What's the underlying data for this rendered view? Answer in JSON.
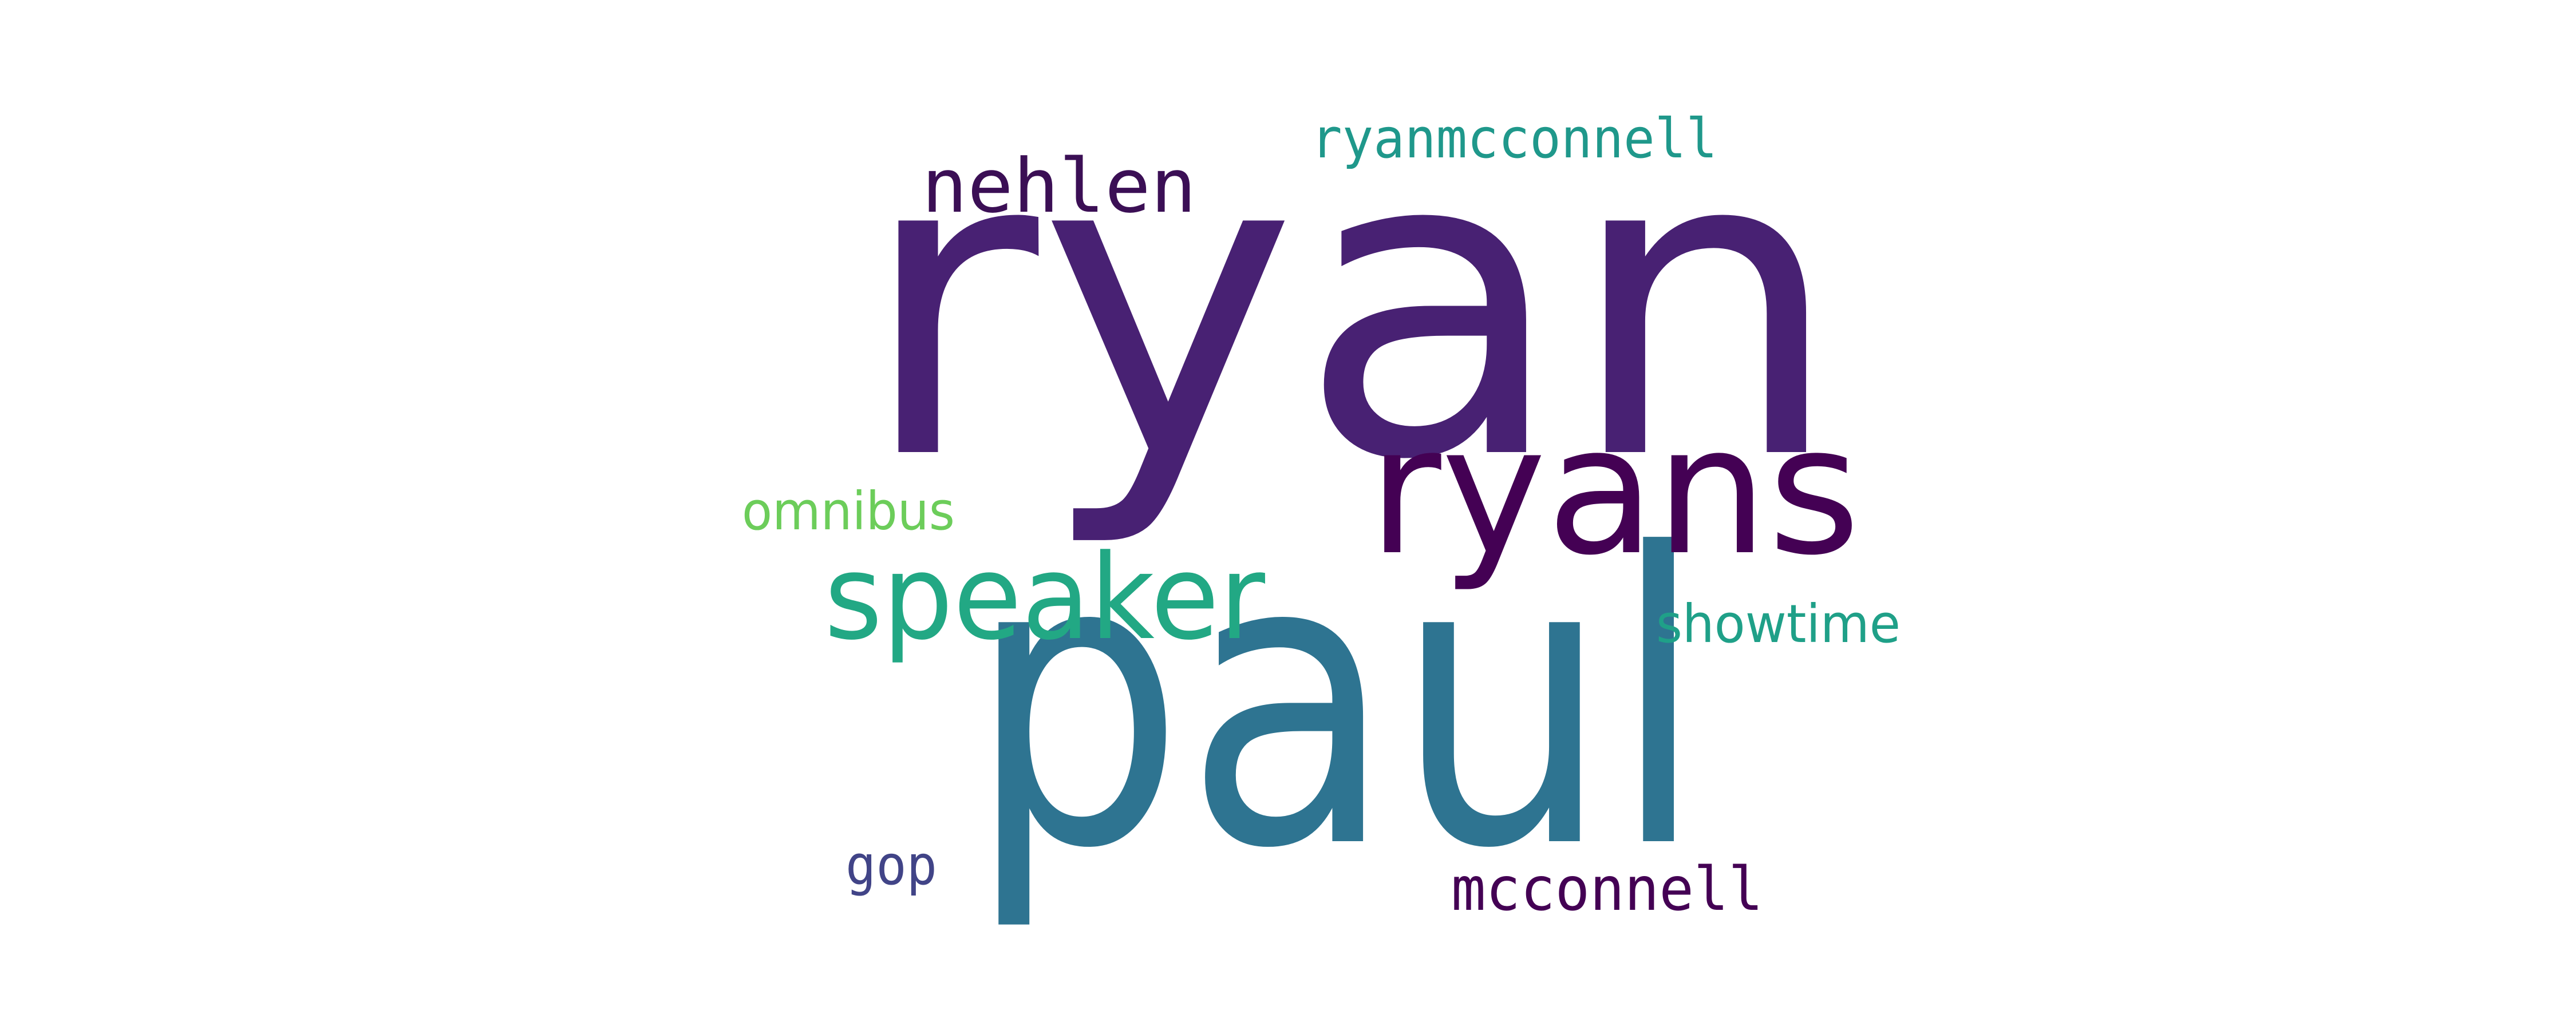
{
  "word_cloud": {
    "words": [
      {
        "text": "ryan",
        "color": "#482173"
      },
      {
        "text": "paul",
        "color": "#2e7491"
      },
      {
        "text": "ryans",
        "color": "#440154"
      },
      {
        "text": "speaker",
        "color": "#22a884"
      },
      {
        "text": "nehlen",
        "color": "#3b0f55"
      },
      {
        "text": "ryanmcconnell",
        "color": "#1f988b"
      },
      {
        "text": "omnibus",
        "color": "#6ccd5a"
      },
      {
        "text": "showtime",
        "color": "#1fa088"
      },
      {
        "text": "gop",
        "color": "#414487"
      },
      {
        "text": "mcconnell",
        "color": "#440154"
      }
    ]
  }
}
